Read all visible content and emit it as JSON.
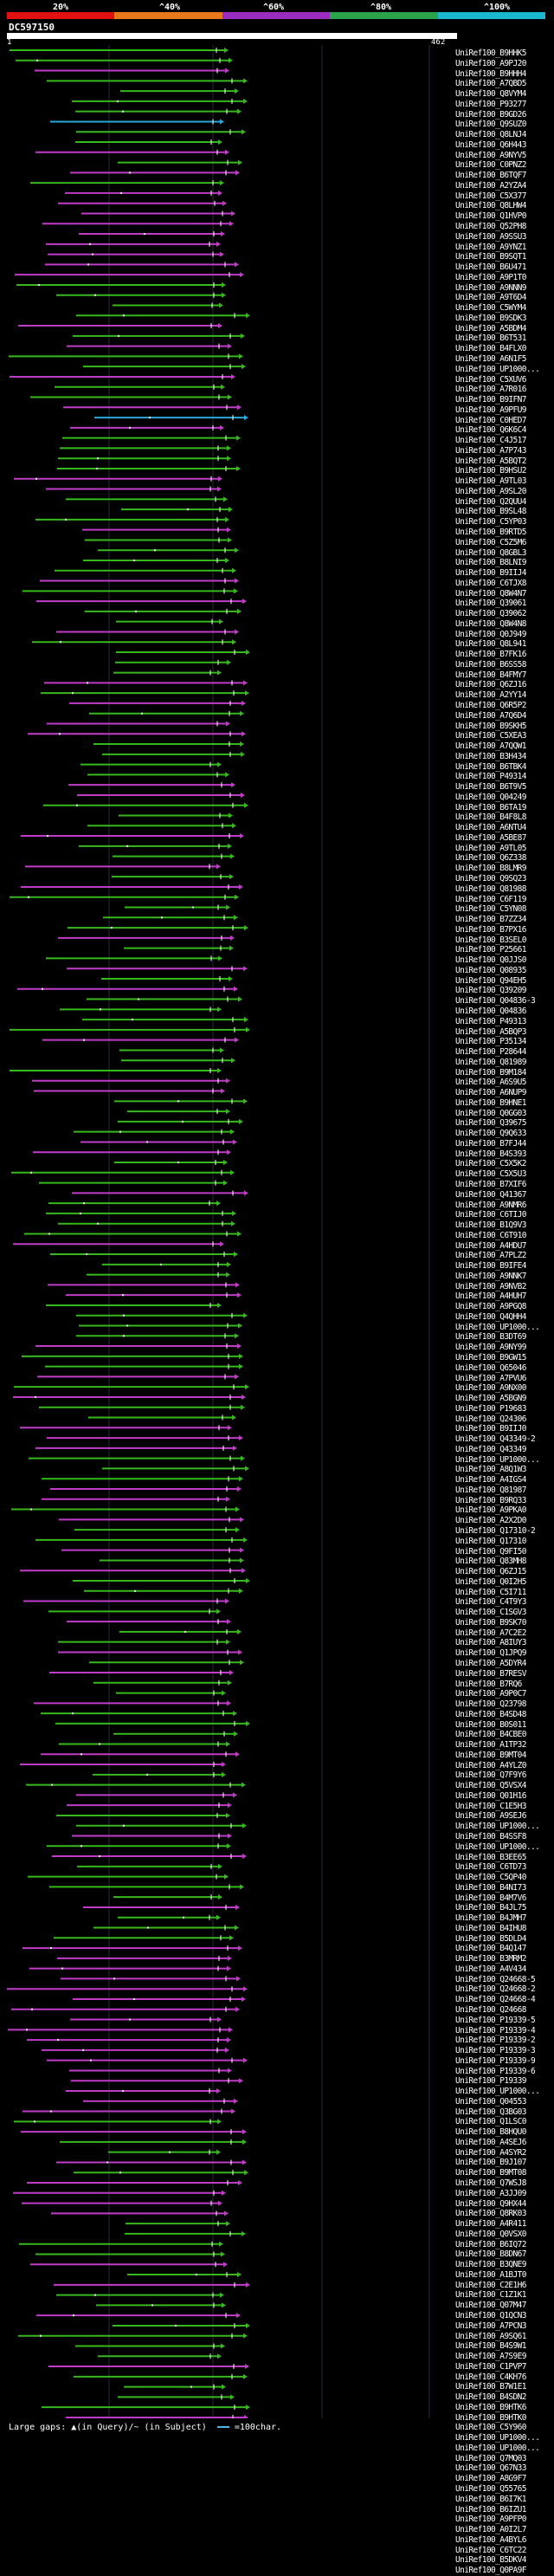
{
  "header": {
    "ticks": [
      "20%",
      "^40%",
      "^60%",
      "^80%",
      "^100%"
    ],
    "legend_colors": [
      "#e01010",
      "#e8781c",
      "#9a2cc0",
      "#2aa34a",
      "#1ab8d0"
    ],
    "query_id": "DC597150",
    "query_start": "1",
    "query_end": "462"
  },
  "colors": {
    "green": "#37b91e",
    "magenta": "#c03cc8",
    "cyan": "#2aa7d8",
    "guide": "#2a2a3a"
  },
  "footer": {
    "large_gaps_text": "Large gaps: ▲(in Query)/~ (in Subject)",
    "scale_text": "=100char."
  },
  "hits": [
    "UniRef100_B9HHK5",
    "UniRef100_A9PJ20",
    "UniRef100_B9HHH4",
    "UniRef100_A7QBD5",
    "UniRef100_Q8VYM4",
    "UniRef100_P93277",
    "UniRef100_B9GD26",
    "UniRef100_Q9SUZ0",
    "UniRef100_Q8LNJ4",
    "UniRef100_Q6H443",
    "UniRef100_A9NYV5",
    "UniRef100_C0PNZ2",
    "UniRef100_B6TQF7",
    "UniRef100_A2YZA4",
    "UniRef100_C5X377",
    "UniRef100_Q8LHW4",
    "UniRef100_Q1HVP0",
    "UniRef100_Q52PH8",
    "UniRef100_A9SSU3",
    "UniRef100_A9YNZ1",
    "UniRef100_B9SQT1",
    "UniRef100_B6U471",
    "UniRef100_A9P1T0",
    "UniRef100_A9NNN9",
    "UniRef100_A9T6D4",
    "UniRef100_C5WYM4",
    "UniRef100_B9SDK3",
    "UniRef100_A5BDM4",
    "UniRef100_B6T531",
    "UniRef100_B4FLX0",
    "UniRef100_A6N1F5",
    "UniRef100_UP1000...",
    "UniRef100_C5XUV6",
    "UniRef100_A7R016",
    "UniRef100_B9IFN7",
    "UniRef100_A9PFU9",
    "UniRef100_C0HED7",
    "UniRef100_Q6K6C4",
    "UniRef100_C4J517",
    "UniRef100_A7P743",
    "UniRef100_A5BQT2",
    "UniRef100_B9HSU2",
    "UniRef100_A9TL03",
    "UniRef100_A9SL20",
    "UniRef100_Q2QUU4",
    "UniRef100_B9SL48",
    "UniRef100_C5YP03",
    "UniRef100_B9RTD5",
    "UniRef100_C5Z5M6",
    "UniRef100_Q8GBL3",
    "UniRef100_B8LNI9",
    "UniRef100_B9IIJ4",
    "UniRef100_C6TJX8",
    "UniRef100_Q8W4N7",
    "UniRef100_Q39061",
    "UniRef100_Q39062",
    "UniRef100_Q8W4N8",
    "UniRef100_Q0J949",
    "UniRef100_Q8L941",
    "UniRef100_B7FK16",
    "UniRef100_B6SS58",
    "UniRef100_B4FMY7",
    "UniRef100_Q6ZJ16",
    "UniRef100_A2YY14",
    "UniRef100_Q6R5P2",
    "UniRef100_A7Q6D4",
    "UniRef100_B9SKH5",
    "UniRef100_C5XEA3",
    "UniRef100_A7QQW1",
    "UniRef100_B3H434",
    "UniRef100_B6TBK4",
    "UniRef100_P49314",
    "UniRef100_B6T9V5",
    "UniRef100_Q04249",
    "UniRef100_B6TA19",
    "UniRef100_B4F8L8",
    "UniRef100_A6NTU4",
    "UniRef100_A5BE87",
    "UniRef100_A9TL05",
    "UniRef100_Q6Z338",
    "UniRef100_B8LMR9",
    "UniRef100_Q9SQ23",
    "UniRef100_Q81988",
    "UniRef100_C6F119",
    "UniRef100_C5YN08",
    "UniRef100_B7ZZ34",
    "UniRef100_B7PX16",
    "UniRef100_B3SEL0",
    "UniRef100_P25661",
    "UniRef100_Q0JJS0",
    "UniRef100_Q08935",
    "UniRef100_Q94EH5",
    "UniRef100_Q39209",
    "UniRef100_Q04836-3",
    "UniRef100_Q04836",
    "UniRef100_P49313",
    "UniRef100_A5BQP3",
    "UniRef100_P35134",
    "UniRef100_P28644",
    "UniRef100_Q81989",
    "UniRef100_B9M184",
    "UniRef100_A6S9U5",
    "UniRef100_A6NUP9",
    "UniRef100_B9HNE1",
    "UniRef100_Q0GG03",
    "UniRef100_Q39675",
    "UniRef100_Q9Q633",
    "UniRef100_B7FJ44",
    "UniRef100_B4S393",
    "UniRef100_C5X5K2",
    "UniRef100_C5X5U3",
    "UniRef100_B7XIF6",
    "UniRef100_Q41367",
    "UniRef100_A9NMR6",
    "UniRef100_C6TIJ0",
    "UniRef100_B1Q9V3",
    "UniRef100_C6T910",
    "UniRef100_A4HDU7",
    "UniRef100_A7PLZ2",
    "UniRef100_B9IFE4",
    "UniRef100_A9NNK7",
    "UniRef100_A9NVB2",
    "UniRef100_A4HUH7",
    "UniRef100_A9PGQ8",
    "UniRef100_Q4QHH4",
    "UniRef100_UP1000...",
    "UniRef100_B3DT69",
    "UniRef100_A9NY99",
    "UniRef100_B9GW15",
    "UniRef100_Q65046",
    "UniRef100_A7PVU6",
    "UniRef100_A9NX00",
    "UniRef100_A5BGN9",
    "UniRef100_P19683",
    "UniRef100_Q24306",
    "UniRef100_B9IIJ0",
    "UniRef100_Q43349-2",
    "UniRef100_Q43349",
    "UniRef100_UP1000...",
    "UniRef100_A8Q1W3",
    "UniRef100_A4IGS4",
    "UniRef100_Q81987",
    "UniRef100_B9RQ33",
    "UniRef100_A9PKA0",
    "UniRef100_A2X2D0",
    "UniRef100_Q17310-2",
    "UniRef100_Q17310",
    "UniRef100_Q9FI50",
    "UniRef100_Q83MH8",
    "UniRef100_Q6ZJ15",
    "UniRef100_Q0I2H5",
    "UniRef100_C5I711",
    "UniRef100_C4T9Y3",
    "UniRef100_C1SGV3",
    "UniRef100_B9SK70",
    "UniRef100_A7C2E2",
    "UniRef100_A8IUY3",
    "UniRef100_Q1JPQ9",
    "UniRef100_A5DYR4",
    "UniRef100_B7RESV",
    "UniRef100_B7RQ6",
    "UniRef100_A9P0C7",
    "UniRef100_Q23798",
    "UniRef100_B4SD48",
    "UniRef100_B0S011",
    "UniRef100_B4CBE0",
    "UniRef100_A1TP32",
    "UniRef100_B9MT04",
    "UniRef100_A4YLZ0",
    "UniRef100_Q7F9Y6",
    "UniRef100_Q5VSX4",
    "UniRef100_Q01H16",
    "UniRef100_C1E5H3",
    "UniRef100_A9SEJ6",
    "UniRef100_UP1000...",
    "UniRef100_B4SSF8",
    "UniRef100_UP1000...",
    "UniRef100_B3EE65",
    "UniRef100_C6TD73",
    "UniRef100_C5QP40",
    "UniRef100_B4NI73",
    "UniRef100_B4M7V6",
    "UniRef100_B4JL75",
    "UniRef100_B4JMH7",
    "UniRef100_B4IHU8",
    "UniRef100_B5DLD4",
    "UniRef100_B4Q147",
    "UniRef100_B3MRM2",
    "UniRef100_A4V434",
    "UniRef100_Q24668-5",
    "UniRef100_Q24668-2",
    "UniRef100_Q24668-4",
    "UniRef100_Q24668",
    "UniRef100_P19339-5",
    "UniRef100_P19339-4",
    "UniRef100_P19339-2",
    "UniRef100_P19339-3",
    "UniRef100_P19339-9",
    "UniRef100_P19339-6",
    "UniRef100_P19339",
    "UniRef100_UP1000...",
    "UniRef100_Q04553",
    "UniRef100_Q3BG03",
    "UniRef100_Q1LSC0",
    "UniRef100_B8HQU0",
    "UniRef100_A4SEJ6",
    "UniRef100_A4SYR2",
    "UniRef100_B9J107",
    "UniRef100_B9MT08",
    "UniRef100_Q7WSJ8",
    "UniRef100_A3JJ09",
    "UniRef100_Q9HX44",
    "UniRef100_Q8RK03",
    "UniRef100_A4R411",
    "UniRef100_Q0VSX0",
    "UniRef100_B6IQ72",
    "UniRef100_B8DN67",
    "UniRef100_B3QNE9",
    "UniRef100_A1BJT0",
    "UniRef100_C2E1H6",
    "UniRef100_C1Z1K1",
    "UniRef100_Q07M47",
    "UniRef100_Q1QCN3",
    "UniRef100_A7PCN3",
    "UniRef100_A9SQ61",
    "UniRef100_B4S9W1",
    "UniRef100_A7S9E9",
    "UniRef100_C1PVP7",
    "UniRef100_C4KH76",
    "UniRef100_B7W1E1",
    "UniRef100_B4SDN2",
    "UniRef100_B9HTK6",
    "UniRef100_B9HTK0",
    "UniRef100_C5Y960",
    "UniRef100_UP1000...",
    "UniRef100_UP1000...",
    "UniRef100_Q7MQ03",
    "UniRef100_Q67N33",
    "UniRef100_A8G9F7",
    "UniRef100_Q55765",
    "UniRef100_B6I7K1",
    "UniRef100_B6IZU1",
    "UniRef100_A9PFP0",
    "UniRef100_A0I2L7",
    "UniRef100_A4BYL6",
    "UniRef100_C6TC22",
    "UniRef100_B5DKV4",
    "UniRef100_Q0PA9F"
  ]
}
